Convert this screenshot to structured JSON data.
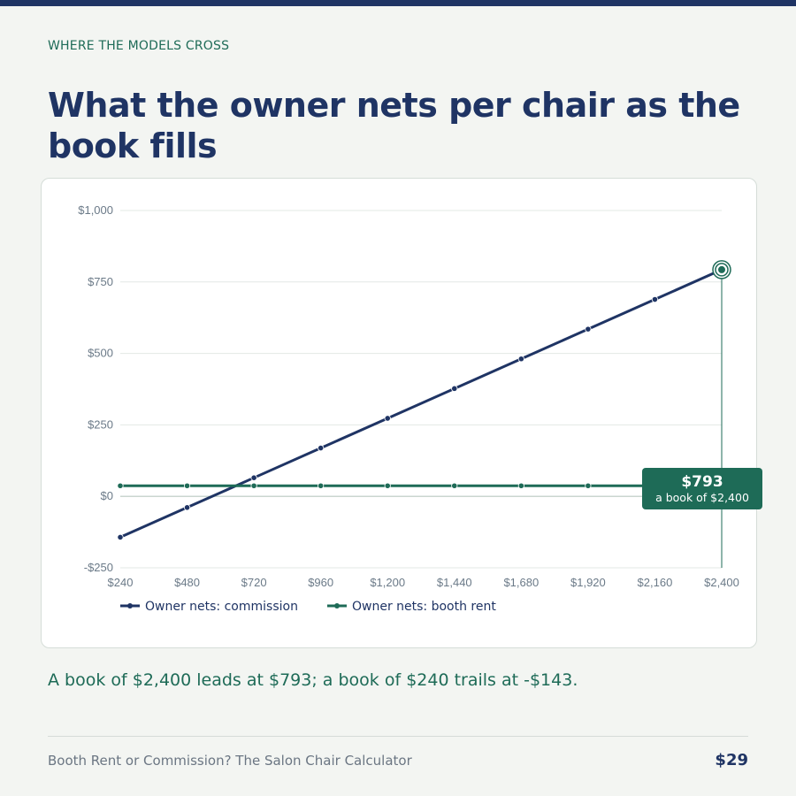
{
  "header": {
    "eyebrow": "WHERE THE MODELS CROSS",
    "title": "What the owner nets per chair as the book fills"
  },
  "colors": {
    "commission": "#1f3464",
    "booth_rent": "#1e6b57",
    "accent_bar": "#1f3464"
  },
  "chart_data": {
    "type": "line",
    "x": [
      240,
      480,
      720,
      960,
      1200,
      1440,
      1680,
      1920,
      2160,
      2400
    ],
    "x_tick_labels": [
      "$240",
      "$480",
      "$720",
      "$960",
      "$1,200",
      "$1,440",
      "$1,680",
      "$1,920",
      "$2,160",
      "$2,400"
    ],
    "y_tick_labels": [
      "-$250",
      "$0",
      "$250",
      "$500",
      "$750",
      "$1,000"
    ],
    "y_ticks": [
      -250,
      0,
      250,
      500,
      750,
      1000
    ],
    "ylim": [
      -250,
      1000
    ],
    "series": [
      {
        "name": "Owner nets: commission",
        "values": [
          -143,
          -39,
          65,
          169,
          273,
          377,
          481,
          585,
          689,
          793
        ]
      },
      {
        "name": "Owner nets: booth rent",
        "values": [
          37,
          37,
          37,
          37,
          37,
          37,
          37,
          37,
          37,
          37
        ]
      }
    ],
    "legend_position": "bottom-left",
    "grid": true,
    "annotation": {
      "value": "$793",
      "label": "a book of $2,400",
      "x": 2400,
      "y": 793
    }
  },
  "summary": "A book of $2,400 leads at $793; a book of $240 trails at -$143.",
  "footer": {
    "product": "Booth Rent or Commission? The Salon Chair Calculator",
    "price": "$29"
  }
}
